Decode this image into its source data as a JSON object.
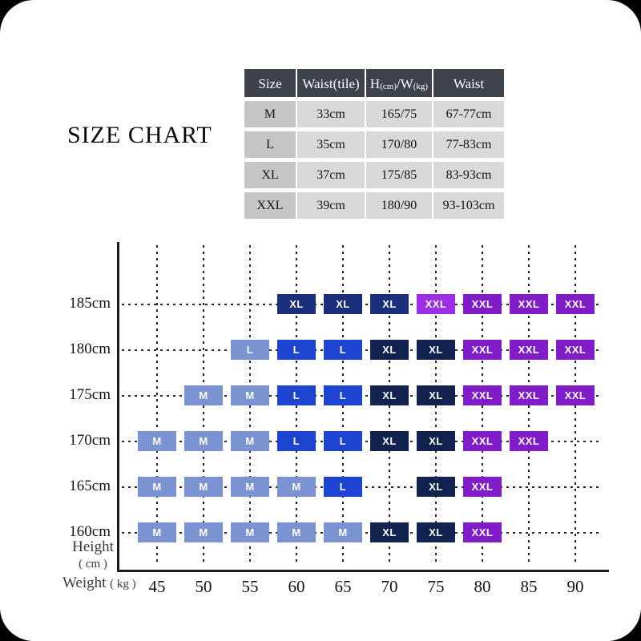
{
  "title": "SIZE CHART",
  "size_table": {
    "headers": [
      {
        "text": "Size"
      },
      {
        "text": "Waist(tile)"
      },
      {
        "parts": [
          {
            "t": "H"
          },
          {
            "t": "(cm)",
            "small": true
          },
          {
            "t": "/W"
          },
          {
            "t": "(kg)",
            "small": true
          }
        ]
      },
      {
        "text": "Waist"
      }
    ],
    "rows": [
      [
        "M",
        "33cm",
        "165/75",
        "67-77cm"
      ],
      [
        "L",
        "35cm",
        "170/80",
        "77-83cm"
      ],
      [
        "XL",
        "37cm",
        "175/85",
        "83-93cm"
      ],
      [
        "XXL",
        "39cm",
        "180/90",
        "93-103cm"
      ]
    ]
  },
  "chart_data": {
    "type": "heatmap",
    "x_axis": {
      "label": "Weight",
      "unit": "( kg )",
      "ticks": [
        "45",
        "50",
        "55",
        "60",
        "65",
        "70",
        "75",
        "80",
        "85",
        "90"
      ],
      "range": [
        45,
        90
      ]
    },
    "y_axis": {
      "label": "Height",
      "unit": "( cm )",
      "ticks": [
        "185cm",
        "180cm",
        "175cm",
        "170cm",
        "165cm",
        "160cm"
      ]
    },
    "colors": {
      "M": "#7b93d1",
      "L_light": "#7b93d1",
      "L": "#1d44cf",
      "XL_blue": "#1b2e7c",
      "XL_dark": "#12224f",
      "XXL_bright": "#9a2fe3",
      "XXL": "#811cc9"
    },
    "rows": [
      {
        "height": "185cm",
        "boxes": [
          {
            "weight": 60,
            "size": "XL",
            "color": "#1b2e7c"
          },
          {
            "weight": 65,
            "size": "XL",
            "color": "#1b2e7c"
          },
          {
            "weight": 70,
            "size": "XL",
            "color": "#1b2e7c"
          },
          {
            "weight": 75,
            "size": "XXL",
            "color": "#9a2fe3"
          },
          {
            "weight": 80,
            "size": "XXL",
            "color": "#811cc9"
          },
          {
            "weight": 85,
            "size": "XXL",
            "color": "#811cc9"
          },
          {
            "weight": 90,
            "size": "XXL",
            "color": "#811cc9"
          }
        ]
      },
      {
        "height": "180cm",
        "boxes": [
          {
            "weight": 55,
            "size": "L",
            "color": "#7b93d1"
          },
          {
            "weight": 60,
            "size": "L",
            "color": "#1d44cf"
          },
          {
            "weight": 65,
            "size": "L",
            "color": "#1d44cf"
          },
          {
            "weight": 70,
            "size": "XL",
            "color": "#12224f"
          },
          {
            "weight": 75,
            "size": "XL",
            "color": "#12224f"
          },
          {
            "weight": 80,
            "size": "XXL",
            "color": "#811cc9"
          },
          {
            "weight": 85,
            "size": "XXL",
            "color": "#811cc9"
          },
          {
            "weight": 90,
            "size": "XXL",
            "color": "#811cc9"
          }
        ]
      },
      {
        "height": "175cm",
        "boxes": [
          {
            "weight": 50,
            "size": "M",
            "color": "#7b93d1"
          },
          {
            "weight": 55,
            "size": "M",
            "color": "#7b93d1"
          },
          {
            "weight": 60,
            "size": "L",
            "color": "#1d44cf"
          },
          {
            "weight": 65,
            "size": "L",
            "color": "#1d44cf"
          },
          {
            "weight": 70,
            "size": "XL",
            "color": "#12224f"
          },
          {
            "weight": 75,
            "size": "XL",
            "color": "#12224f"
          },
          {
            "weight": 80,
            "size": "XXL",
            "color": "#811cc9"
          },
          {
            "weight": 85,
            "size": "XXL",
            "color": "#811cc9"
          },
          {
            "weight": 90,
            "size": "XXL",
            "color": "#811cc9"
          }
        ]
      },
      {
        "height": "170cm",
        "boxes": [
          {
            "weight": 45,
            "size": "M",
            "color": "#7b93d1"
          },
          {
            "weight": 50,
            "size": "M",
            "color": "#7b93d1"
          },
          {
            "weight": 55,
            "size": "M",
            "color": "#7b93d1"
          },
          {
            "weight": 60,
            "size": "L",
            "color": "#1d44cf"
          },
          {
            "weight": 65,
            "size": "L",
            "color": "#1d44cf"
          },
          {
            "weight": 70,
            "size": "XL",
            "color": "#12224f"
          },
          {
            "weight": 75,
            "size": "XL",
            "color": "#12224f"
          },
          {
            "weight": 80,
            "size": "XXL",
            "color": "#811cc9"
          },
          {
            "weight": 85,
            "size": "XXL",
            "color": "#811cc9"
          }
        ]
      },
      {
        "height": "165cm",
        "boxes": [
          {
            "weight": 45,
            "size": "M",
            "color": "#7b93d1"
          },
          {
            "weight": 50,
            "size": "M",
            "color": "#7b93d1"
          },
          {
            "weight": 55,
            "size": "M",
            "color": "#7b93d1"
          },
          {
            "weight": 60,
            "size": "M",
            "color": "#7b93d1"
          },
          {
            "weight": 65,
            "size": "L",
            "color": "#1d44cf"
          },
          {
            "weight": 75,
            "size": "XL",
            "color": "#12224f"
          },
          {
            "weight": 80,
            "size": "XXL",
            "color": "#811cc9"
          }
        ]
      },
      {
        "height": "160cm",
        "boxes": [
          {
            "weight": 45,
            "size": "M",
            "color": "#7b93d1"
          },
          {
            "weight": 50,
            "size": "M",
            "color": "#7b93d1"
          },
          {
            "weight": 55,
            "size": "M",
            "color": "#7b93d1"
          },
          {
            "weight": 60,
            "size": "M",
            "color": "#7b93d1"
          },
          {
            "weight": 65,
            "size": "M",
            "color": "#7b93d1"
          },
          {
            "weight": 70,
            "size": "XL",
            "color": "#12224f"
          },
          {
            "weight": 75,
            "size": "XL",
            "color": "#12224f"
          },
          {
            "weight": 80,
            "size": "XXL",
            "color": "#811cc9"
          }
        ]
      }
    ]
  }
}
